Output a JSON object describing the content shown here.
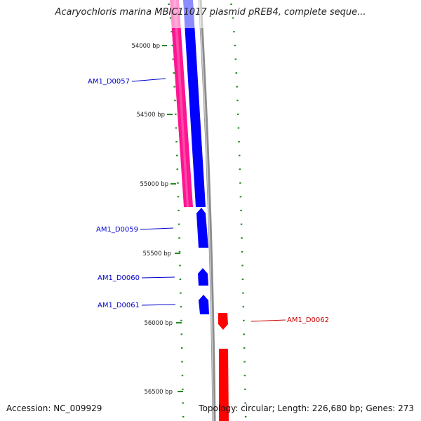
{
  "title": "Acaryochloris marina MBIC11017 plasmid pREB4, complete seque...",
  "footer": {
    "accession": "Accession: NC_009929",
    "summary": "Topology: circular; Length: 226,680 bp; Genes: 273"
  },
  "position_labels": [
    "54000 bp",
    "54500 bp",
    "55000 bp",
    "55500 bp",
    "56000 bp",
    "56500 bp"
  ],
  "genes": [
    {
      "name": "AM1_D0057",
      "strand": "reverse",
      "color": "#0000cc"
    },
    {
      "name": "AM1_D0059",
      "strand": "reverse",
      "color": "#0000cc"
    },
    {
      "name": "AM1_D0060",
      "strand": "reverse",
      "color": "#0000cc"
    },
    {
      "name": "AM1_D0061",
      "strand": "reverse",
      "color": "#0000cc"
    },
    {
      "name": "AM1_D0062",
      "strand": "forward",
      "color": "#cc0000"
    }
  ],
  "colors": {
    "reverse_gene": "#0000ff",
    "forward_gene": "#ff0000",
    "pink_track": "#ff1493",
    "backbone": "#8c8c8c",
    "ticks": "#228b22"
  }
}
